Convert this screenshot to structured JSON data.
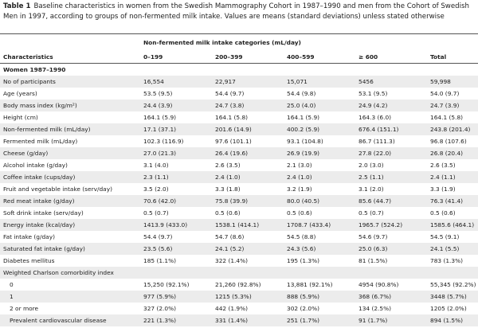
{
  "caption": {
    "label": "Table 1",
    "text": "Baseline characteristics in women from the Swedish Mammography Cohort in 1987–1990 and men from the Cohort of Swedish Men in 1997, according to groups of non-fermented milk intake. Values are means (standard deviations) unless stated otherwise"
  },
  "table": {
    "group_header": "Non-fermented milk intake categories (mL/day)",
    "columns": [
      "Characteristics",
      "0–199",
      "200–399",
      "400–599",
      "≥ 600",
      "Total"
    ],
    "rows": [
      [
        "Women 1987–1990"
      ],
      [
        "No of participants",
        "16,554",
        "22,917",
        "15,071",
        "5456",
        "59,998"
      ],
      [
        "Age (years)",
        "53.5 (9.5)",
        "54.4 (9.7)",
        "54.4 (9.8)",
        "53.1 (9.5)",
        "54.0 (9.7)"
      ],
      [
        "Body mass index (kg/m²)",
        "24.4 (3.9)",
        "24.7 (3.8)",
        "25.0 (4.0)",
        "24.9 (4.2)",
        "24.7 (3.9)"
      ],
      [
        "Height (cm)",
        "164.1 (5.9)",
        "164.1 (5.8)",
        "164.1 (5.9)",
        "164.3 (6.0)",
        "164.1 (5.8)"
      ],
      [
        "Non-fermented milk (mL/day)",
        "17.1 (37.1)",
        "201.6 (14.9)",
        "400.2 (5.9)",
        "676.4 (151.1)",
        "243.8 (201.4)"
      ],
      [
        "Fermented milk (mL/day)",
        "102.3 (116.9)",
        "97.6 (101.1)",
        "93.1 (104.8)",
        "86.7 (111.3)",
        "96.8 (107.6)"
      ],
      [
        "Cheese (g/day)",
        "27.0 (21.3)",
        "26.4 (19.6)",
        "26.9 (19.9)",
        "27.8 (22.0)",
        "26.8 (20.4)"
      ],
      [
        "Alcohol intake (g/day)",
        "3.1 (4.0)",
        "2.6 (3.5)",
        "2.1 (3.0)",
        "2.0 (3.0)",
        "2.6 (3.5)"
      ],
      [
        "Coffee intake (cups/day)",
        "2.3 (1.1)",
        "2.4 (1.0)",
        "2.4 (1.0)",
        "2.5 (1.1)",
        "2.4 (1.1)"
      ],
      [
        "Fruit and vegetable intake (serv/day)",
        "3.5 (2.0)",
        "3.3 (1.8)",
        "3.2 (1.9)",
        "3.1 (2.0)",
        "3.3 (1.9)"
      ],
      [
        "Red meat intake (g/day)",
        "70.6 (42.0)",
        "75.8 (39.9)",
        "80.0 (40.5)",
        "85.6 (44.7)",
        "76.3 (41.4)"
      ],
      [
        "Soft drink intake (serv/day)",
        "0.5 (0.7)",
        "0.5 (0.6)",
        "0.5 (0.6)",
        "0.5 (0.7)",
        "0.5 (0.6)"
      ],
      [
        "Energy intake (kcal/day)",
        "1413.9 (433.0)",
        "1538.1 (414.1)",
        "1708.7 (433.4)",
        "1965.7 (524.2)",
        "1585.6 (464.1)"
      ],
      [
        "Fat intake (g/day)",
        "54.4 (9.7)",
        "54.7 (8.6)",
        "54.5 (8.8)",
        "54.6 (9.7)",
        "54.5 (9.1)"
      ],
      [
        "Saturated fat intake (g/day)",
        "23.5 (5.6)",
        "24.1 (5.2)",
        "24.3 (5.6)",
        "25.0 (6.3)",
        "24.1 (5.5)"
      ],
      [
        "Diabetes mellitus",
        "185 (1.1%)",
        "322 (1.4%)",
        "195 (1.3%)",
        "81 (1.5%)",
        "783 (1.3%)"
      ],
      [
        "Weighted Charlson comorbidity index"
      ],
      [
        "0",
        "15,250 (92.1%)",
        "21,260 (92.8%)",
        "13,881 (92.1%)",
        "4954 (90.8%)",
        "55,345 (92.2%)"
      ],
      [
        "1",
        "977 (5.9%)",
        "1215 (5.3%)",
        "888 (5.9%)",
        "368 (6.7%)",
        "3448 (5.7%)"
      ],
      [
        "2 or more",
        "327 (2.0%)",
        "442 (1.9%)",
        "302 (2.0%)",
        "134 (2.5%)",
        "1205 (2.0%)"
      ],
      [
        "Prevalent cardiovascular disease",
        "221 (1.3%)",
        "331 (1.4%)",
        "251 (1.7%)",
        "91 (1.7%)",
        "894 (1.5%)"
      ]
    ]
  }
}
